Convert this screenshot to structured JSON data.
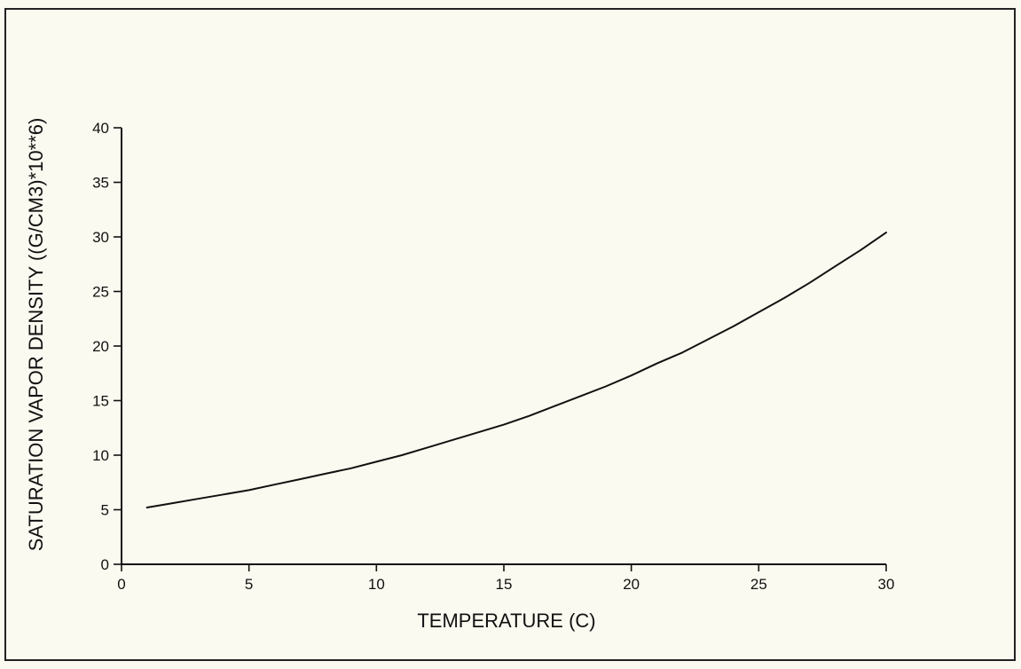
{
  "chart_data": {
    "type": "line",
    "title": "",
    "xlabel": "TEMPERATURE (C)",
    "ylabel": "SATURATION VAPOR DENSITY ((G/CM3)*10**6)",
    "xlim": [
      0,
      30
    ],
    "ylim": [
      0,
      40
    ],
    "xticks": [
      0,
      5,
      10,
      15,
      20,
      25,
      30
    ],
    "yticks": [
      0,
      5,
      10,
      15,
      20,
      25,
      30,
      35,
      40
    ],
    "grid": false,
    "legend": "none",
    "colors": {
      "background": "#fbfaf0",
      "ink": "#111111"
    },
    "series": [
      {
        "x": [
          1,
          2,
          3,
          4,
          5,
          6,
          7,
          8,
          9,
          10,
          11,
          12,
          13,
          14,
          15,
          16,
          17,
          18,
          19,
          20,
          21,
          22,
          23,
          24,
          25,
          26,
          27,
          28,
          29,
          30
        ],
        "values": [
          5.2,
          5.6,
          6.0,
          6.4,
          6.8,
          7.3,
          7.8,
          8.3,
          8.8,
          9.4,
          10.0,
          10.7,
          11.4,
          12.1,
          12.8,
          13.6,
          14.5,
          15.4,
          16.3,
          17.3,
          18.4,
          19.4,
          20.6,
          21.8,
          23.1,
          24.4,
          25.8,
          27.3,
          28.8,
          30.4
        ]
      }
    ]
  }
}
